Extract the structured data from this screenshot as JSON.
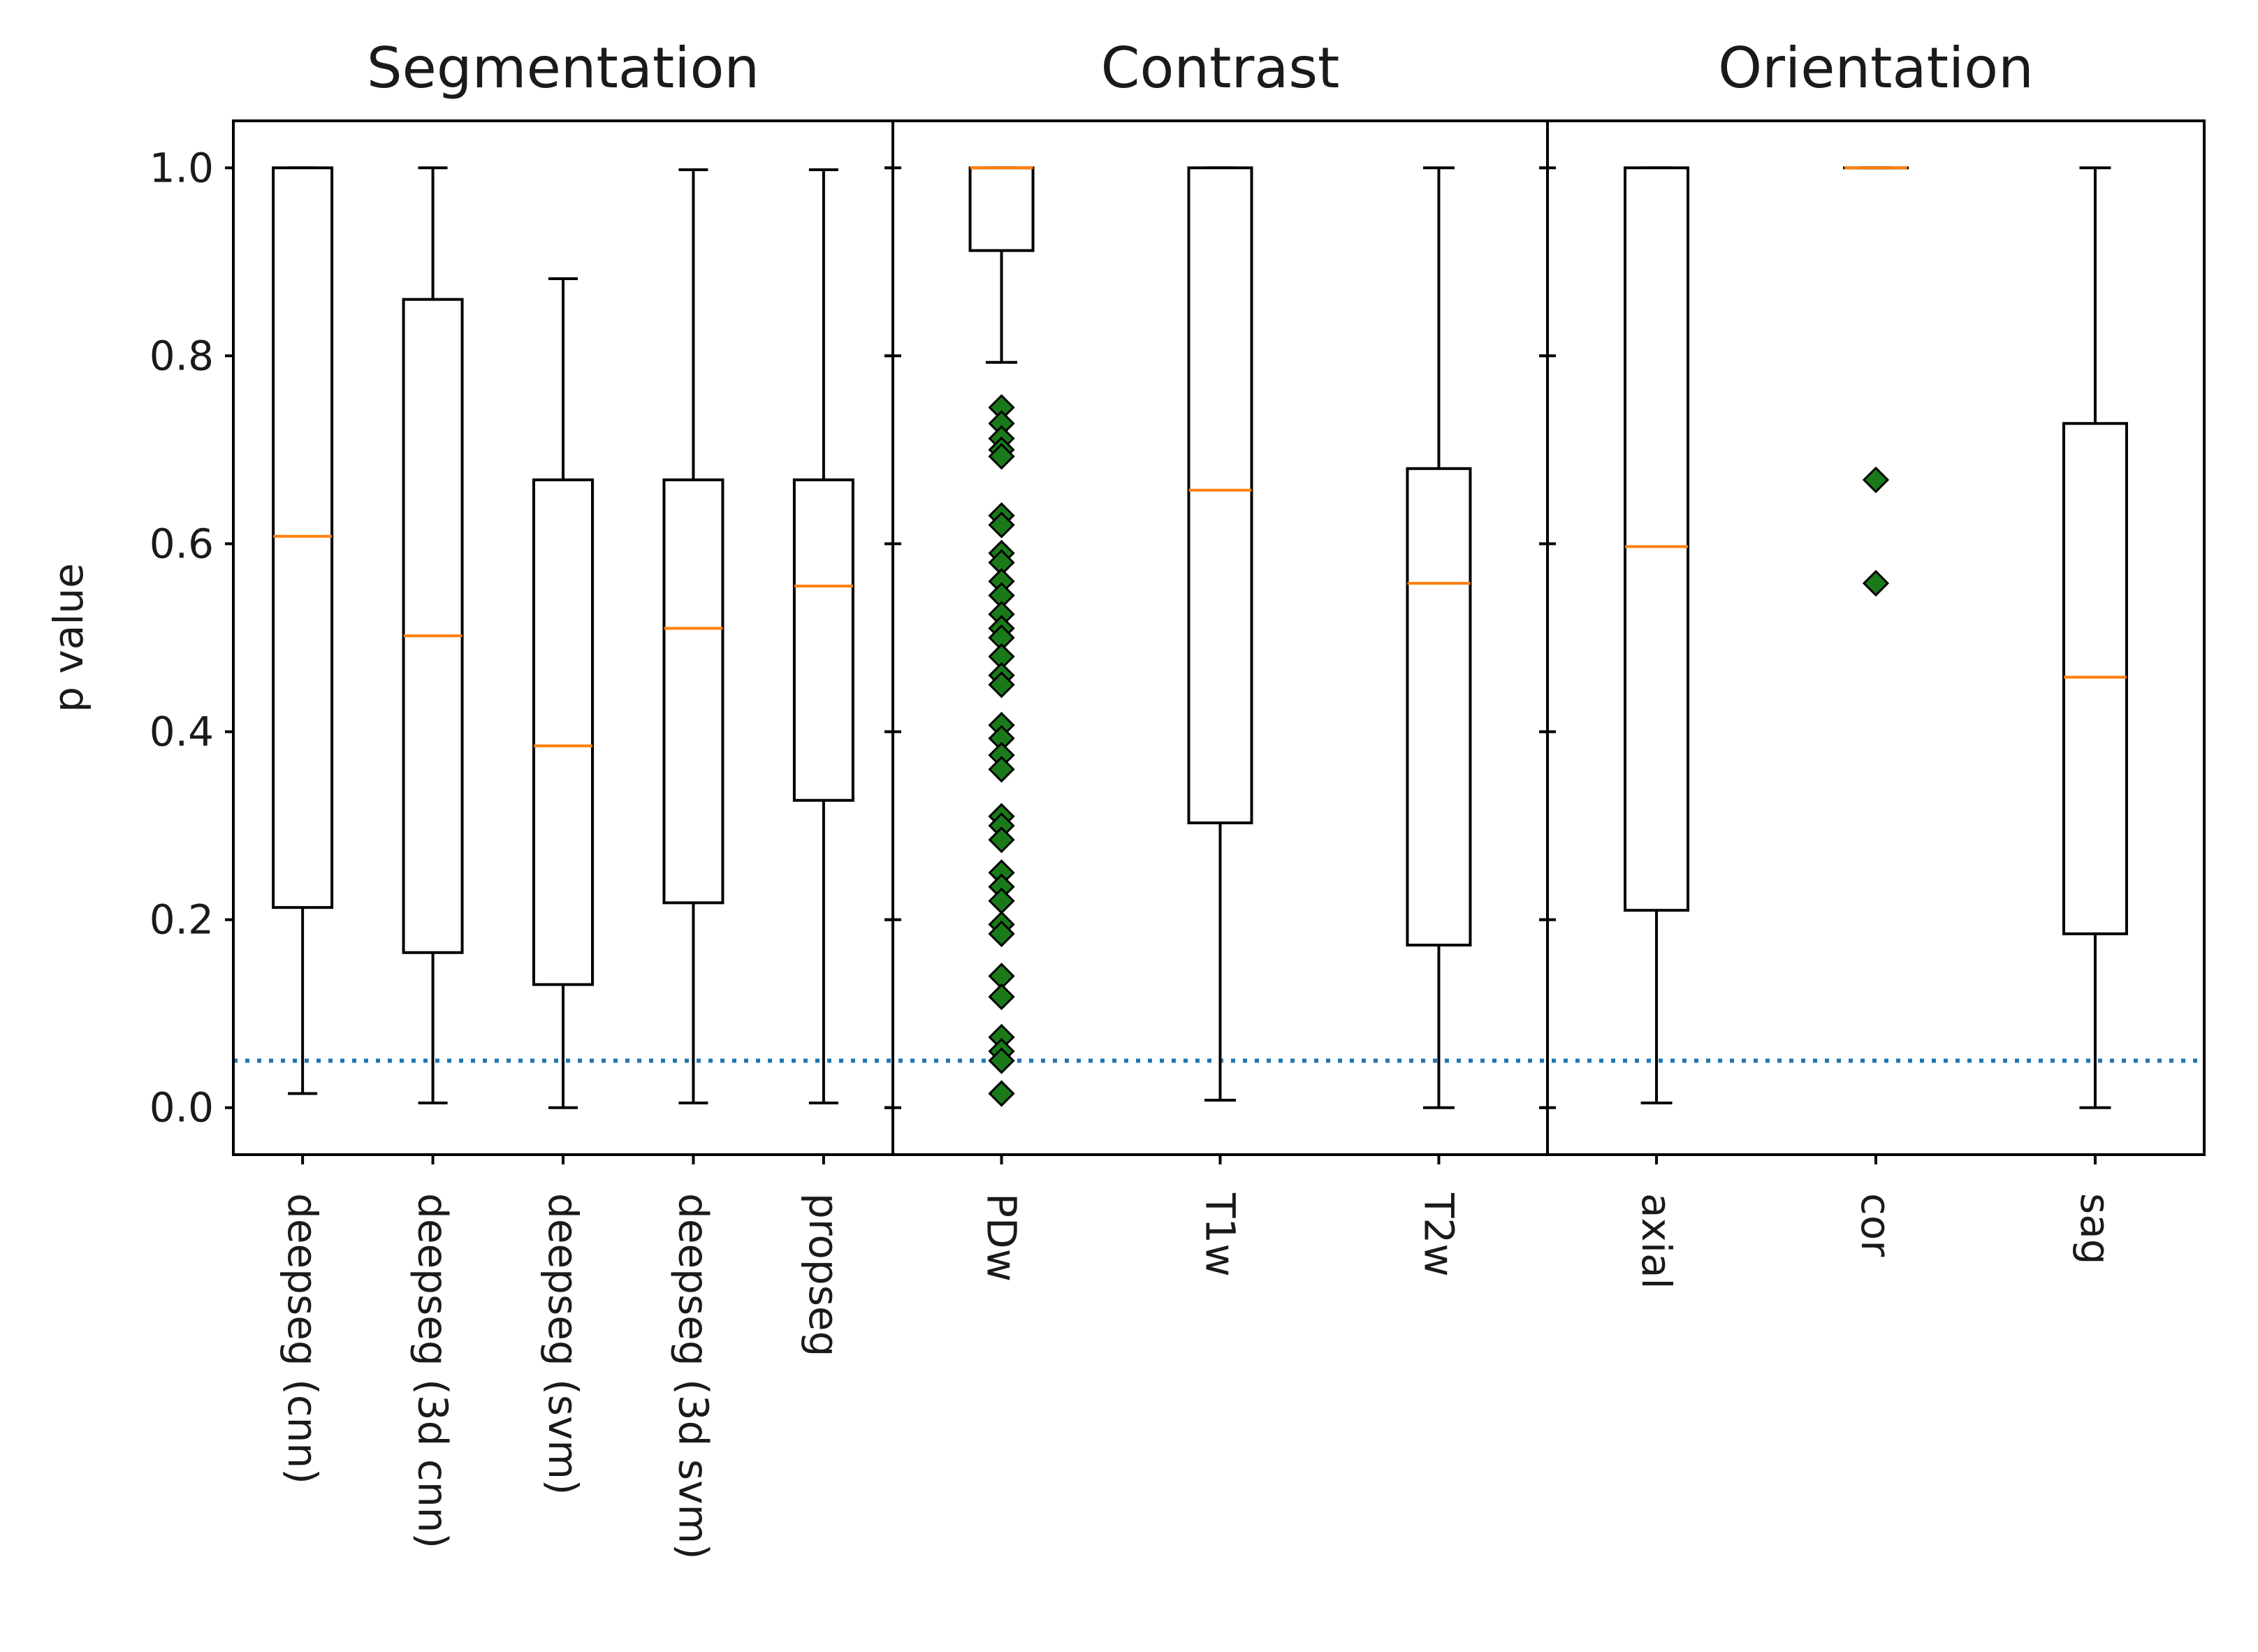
{
  "chart_data": {
    "type": "box",
    "ylabel": "p value",
    "ylim": [
      -0.05,
      1.05
    ],
    "yticks": [
      0.0,
      0.2,
      0.4,
      0.6,
      0.8,
      1.0
    ],
    "ytick_labels": [
      "0.0",
      "0.2",
      "0.4",
      "0.6",
      "0.8",
      "1.0"
    ],
    "reference_line": {
      "y": 0.05,
      "style": "dotted",
      "color": "#1f77b4"
    },
    "colors": {
      "median": "#ff7f0e",
      "outlier_fill": "#1a7a1a",
      "box": "#000000"
    },
    "panels": [
      {
        "title": "Segmentation",
        "categories": [
          "deepseg (cnn)",
          "deepseg (3d cnn)",
          "deepseg (svm)",
          "deepseg (3d svm)",
          "propseg"
        ],
        "boxes": [
          {
            "whisker_low": 0.015,
            "q1": 0.213,
            "median": 0.608,
            "q3": 1.0,
            "whisker_high": 1.0,
            "outliers": []
          },
          {
            "whisker_low": 0.005,
            "q1": 0.165,
            "median": 0.502,
            "q3": 0.86,
            "whisker_high": 1.0,
            "outliers": []
          },
          {
            "whisker_low": 0.0,
            "q1": 0.131,
            "median": 0.385,
            "q3": 0.668,
            "whisker_high": 0.882,
            "outliers": []
          },
          {
            "whisker_low": 0.005,
            "q1": 0.218,
            "median": 0.51,
            "q3": 0.668,
            "whisker_high": 0.998,
            "outliers": []
          },
          {
            "whisker_low": 0.005,
            "q1": 0.327,
            "median": 0.555,
            "q3": 0.668,
            "whisker_high": 0.998,
            "outliers": []
          }
        ]
      },
      {
        "title": "Contrast",
        "categories": [
          "PDw",
          "T1w",
          "T2w"
        ],
        "boxes": [
          {
            "whisker_low": 0.793,
            "q1": 0.912,
            "median": 1.0,
            "q3": 1.0,
            "whisker_high": 1.0,
            "outliers": [
              0.745,
              0.728,
              0.712,
              0.7,
              0.693,
              0.63,
              0.62,
              0.59,
              0.58,
              0.56,
              0.545,
              0.525,
              0.51,
              0.5,
              0.48,
              0.46,
              0.45,
              0.407,
              0.393,
              0.375,
              0.36,
              0.31,
              0.3,
              0.285,
              0.25,
              0.235,
              0.22,
              0.195,
              0.185,
              0.14,
              0.118,
              0.075,
              0.06,
              0.05,
              0.015
            ]
          },
          {
            "whisker_low": 0.008,
            "q1": 0.303,
            "median": 0.657,
            "q3": 1.0,
            "whisker_high": 1.0,
            "outliers": []
          },
          {
            "whisker_low": 0.0,
            "q1": 0.173,
            "median": 0.558,
            "q3": 0.68,
            "whisker_high": 1.0,
            "outliers": []
          }
        ]
      },
      {
        "title": "Orientation",
        "categories": [
          "axial",
          "cor",
          "sag"
        ],
        "boxes": [
          {
            "whisker_low": 0.005,
            "q1": 0.21,
            "median": 0.597,
            "q3": 1.0,
            "whisker_high": 1.0,
            "outliers": []
          },
          {
            "whisker_low": 1.0,
            "q1": 1.0,
            "median": 1.0,
            "q3": 1.0,
            "whisker_high": 1.0,
            "outliers": [
              0.668,
              0.558
            ]
          },
          {
            "whisker_low": 0.0,
            "q1": 0.185,
            "median": 0.458,
            "q3": 0.728,
            "whisker_high": 1.0,
            "outliers": []
          }
        ]
      }
    ]
  }
}
